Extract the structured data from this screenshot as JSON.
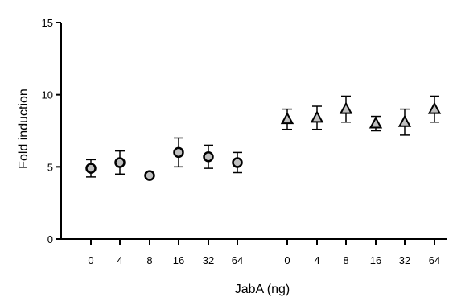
{
  "chart_data": {
    "type": "scatter",
    "title": "",
    "xlabel": "JabA (ng)",
    "ylabel": "Fold induction",
    "ylim": [
      0,
      15
    ],
    "yticks": [
      0,
      5,
      10,
      15
    ],
    "grid": false,
    "legend": "none",
    "categories": [
      "0",
      "4",
      "8",
      "16",
      "32",
      "64",
      "0",
      "4",
      "8",
      "16",
      "32",
      "64"
    ],
    "series": [
      {
        "marker": "circle",
        "values": [
          4.9,
          5.3,
          4.4,
          6.0,
          5.7,
          5.3
        ],
        "error": [
          0.6,
          0.8,
          0.2,
          1.0,
          0.8,
          0.7
        ]
      },
      {
        "marker": "triangle",
        "values": [
          8.3,
          8.4,
          9.0,
          8.0,
          8.1,
          9.0
        ],
        "error": [
          0.7,
          0.8,
          0.9,
          0.5,
          0.9,
          0.9
        ]
      }
    ],
    "colors": {
      "marker_fill": "#bfbfbf",
      "stroke": "#000000"
    }
  }
}
